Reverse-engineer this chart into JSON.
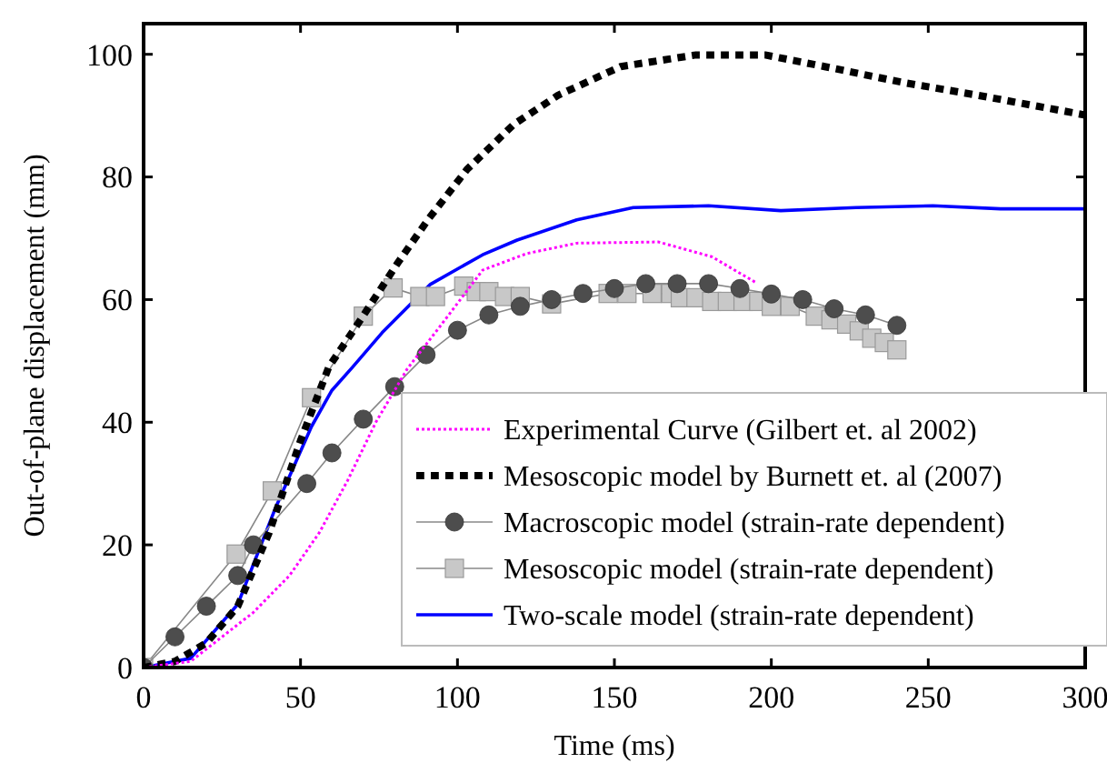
{
  "chart_data": {
    "type": "line",
    "xlabel": "Time (ms)",
    "ylabel": "Out-of-plane displacement (mm)",
    "xlim": [
      0,
      300
    ],
    "ylim": [
      0,
      105
    ],
    "xticks": [
      0,
      50,
      100,
      150,
      200,
      250,
      300
    ],
    "yticks": [
      0,
      20,
      40,
      60,
      80,
      100
    ],
    "grid": false,
    "legend": "bottom right",
    "series": [
      {
        "name": "Experimental Curve (Gilbert et. al 2002)",
        "color": "#ff00ff",
        "line_style": "dotted",
        "marker": "none",
        "x": [
          0,
          15,
          35,
          46.5,
          56,
          65,
          74,
          84,
          95,
          108,
          122,
          138,
          164,
          181,
          195
        ],
        "values": [
          0,
          1,
          9,
          15,
          22,
          30.5,
          40,
          48.7,
          56,
          64.8,
          67.5,
          69.2,
          69.4,
          67,
          62.8
        ]
      },
      {
        "name": "Mesoscopic model by Burnett et. al (2007)",
        "color": "#000000",
        "line_style": "dashed",
        "marker": "none",
        "x": [
          0,
          10,
          20,
          30,
          40,
          50,
          59,
          69,
          81,
          91,
          103,
          118,
          132,
          152,
          176,
          198,
          217,
          242,
          266,
          300
        ],
        "values": [
          0,
          1,
          4,
          10,
          22,
          37,
          49,
          56.6,
          66,
          73.3,
          81.2,
          88.6,
          93.3,
          98,
          99.9,
          99.9,
          98,
          95.4,
          93.3,
          90.1
        ]
      },
      {
        "name": "Macroscopic model (strain-rate dependent)",
        "color": "#4d4d4d",
        "marker": "circle",
        "line_style": "solid",
        "x": [
          0,
          10,
          20,
          30,
          35,
          52,
          60,
          70,
          80,
          90,
          100,
          110,
          120,
          130,
          140,
          150,
          160,
          170,
          180,
          190,
          200,
          210,
          220,
          230,
          240
        ],
        "values": [
          0,
          5,
          10,
          15,
          20,
          30,
          35,
          40.5,
          45.8,
          51,
          55,
          57.5,
          58.9,
          60,
          61,
          61.8,
          62.6,
          62.6,
          62.6,
          61.8,
          60.9,
          60,
          58.5,
          57.5,
          55.8
        ]
      },
      {
        "name": "Mesoscopic model (strain-rate dependent)",
        "color": "#c8c8c8",
        "marker": "square",
        "line_style": "solid",
        "x": [
          0,
          29.5,
          41,
          53.5,
          70,
          79.5,
          88,
          93,
          102,
          106,
          110,
          115,
          120,
          130,
          148,
          154,
          162,
          168,
          171,
          176,
          181,
          186,
          191,
          196,
          200,
          206,
          214,
          219,
          224,
          228,
          232,
          236,
          240
        ],
        "values": [
          0,
          18.5,
          28.8,
          44,
          57.3,
          61.9,
          60.5,
          60.5,
          62.2,
          61.3,
          61.3,
          60.5,
          60.5,
          59.3,
          61,
          61,
          61,
          61,
          60.3,
          60.3,
          59.7,
          59.7,
          59.7,
          59.7,
          58.9,
          58.9,
          57.3,
          56.7,
          56,
          54.9,
          53.7,
          53,
          51.8
        ]
      },
      {
        "name": "Two-scale model (strain-rate dependent)",
        "color": "#0000ff",
        "line_style": "solid",
        "marker": "none",
        "x": [
          0,
          15,
          30,
          42,
          53.5,
          60,
          66.6,
          76,
          91.4,
          108,
          119,
          138,
          156,
          180,
          203,
          227,
          251.5,
          273,
          300
        ],
        "values": [
          0,
          1.5,
          10.3,
          26,
          39.3,
          45.2,
          49,
          54.6,
          62.5,
          67.3,
          69.7,
          73,
          75,
          75.3,
          74.5,
          75,
          75.3,
          74.8,
          74.8
        ]
      }
    ]
  }
}
